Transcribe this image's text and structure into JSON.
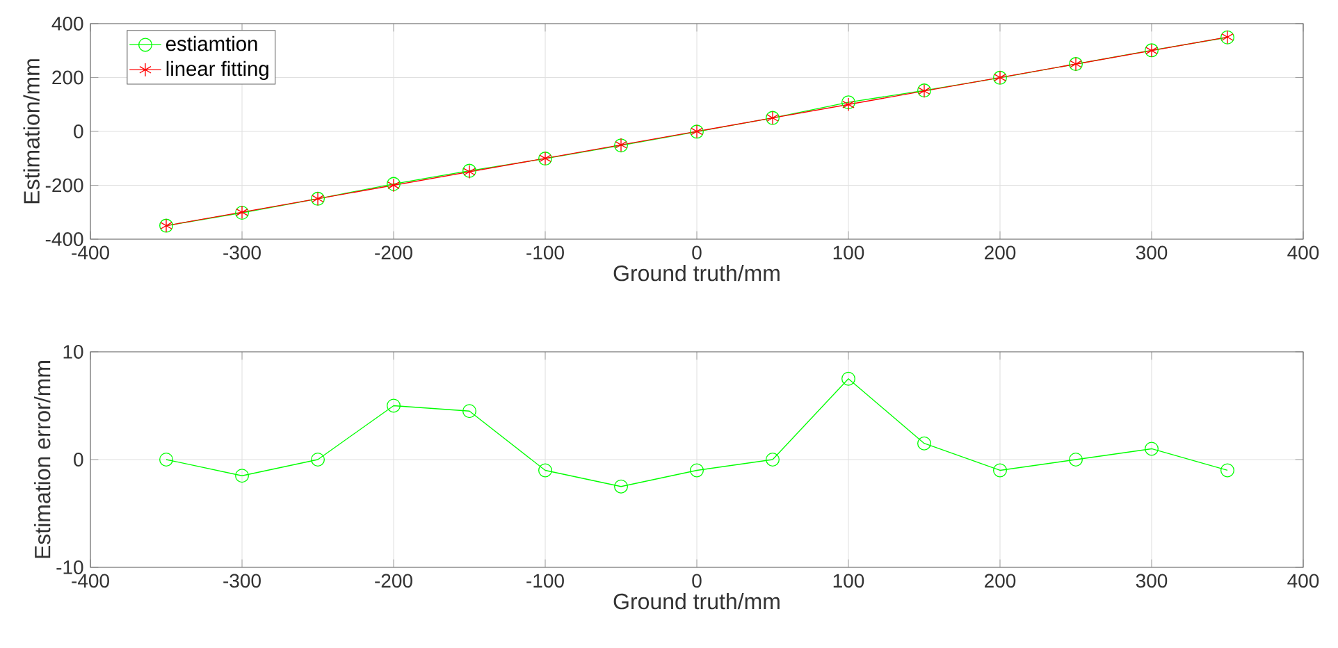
{
  "chart_data": [
    {
      "type": "line",
      "xlabel": "Ground truth/mm",
      "ylabel": "Estimation/mm",
      "x": [
        -350,
        -300,
        -250,
        -200,
        -150,
        -100,
        -50,
        0,
        50,
        100,
        150,
        200,
        250,
        300,
        350
      ],
      "series": [
        {
          "name": "estiamtion",
          "color": "#00ff00",
          "marker": "circle",
          "values": [
            -350,
            -302,
            -250,
            -195,
            -146,
            -101,
            -52,
            -1,
            50,
            108,
            152,
            199,
            250,
            301,
            349
          ]
        },
        {
          "name": "linear fitting",
          "color": "#ff0000",
          "marker": "cross",
          "values": [
            -350,
            -300,
            -250,
            -200,
            -150,
            -100,
            -50,
            0,
            50,
            100,
            150,
            200,
            250,
            300,
            350
          ]
        }
      ],
      "xlim": [
        -400,
        400
      ],
      "xticks": [
        -400,
        -300,
        -200,
        -100,
        0,
        100,
        200,
        300,
        400
      ],
      "ylim": [
        -400,
        400
      ],
      "yticks": [
        -400,
        -200,
        0,
        200,
        400
      ],
      "grid": true,
      "legend": "top left",
      "line_style": "solid"
    },
    {
      "type": "line",
      "xlabel": "Ground truth/mm",
      "ylabel": "Estimation error/mm",
      "x": [
        -350,
        -300,
        -250,
        -200,
        -150,
        -100,
        -50,
        0,
        50,
        100,
        150,
        200,
        250,
        300,
        350
      ],
      "series": [
        {
          "color": "#00ff00",
          "marker": "circle",
          "values": [
            0,
            -1.5,
            0,
            5,
            4.5,
            -1,
            -2.5,
            -1,
            0,
            7.5,
            1.5,
            -1,
            0,
            1,
            -1
          ]
        }
      ],
      "xlim": [
        -400,
        400
      ],
      "xticks": [
        -400,
        -300,
        -200,
        -100,
        0,
        100,
        200,
        300,
        400
      ],
      "ylim": [
        -10,
        10
      ],
      "yticks": [
        -10,
        0,
        10
      ],
      "grid": true,
      "legend": false,
      "line_style": "solid"
    }
  ]
}
